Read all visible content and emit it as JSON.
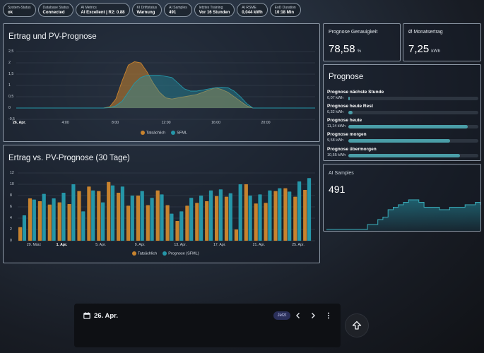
{
  "status_chips": [
    {
      "key": "System-Status",
      "value": "ok"
    },
    {
      "key": "Database Status",
      "value": "Connected"
    },
    {
      "key": "AI Metrics",
      "value": "AI Excellent | R2: 0.88"
    },
    {
      "key": "KI Driftstatus",
      "value": "Warnung"
    },
    {
      "key": "AI Samples",
      "value": "491"
    },
    {
      "key": "letztes Training",
      "value": "Vor 16 Stunden"
    },
    {
      "key": "AI RSME",
      "value": "0,044 kWh"
    },
    {
      "key": "EoD Duration",
      "value": "10:18 Min"
    }
  ],
  "forecast_card": {
    "title": "Ertrag und PV-Prognose",
    "yticks": [
      "2,5",
      "2",
      "1,5",
      "1",
      "0,5",
      "0",
      "-0,5"
    ],
    "xticks": [
      "26. Apr.",
      "4:00",
      "8:00",
      "12:00",
      "16:00",
      "20:00"
    ],
    "legend": [
      "Tatsächlich",
      "SFML"
    ]
  },
  "monthly_card": {
    "title": "Ertrag vs. PV-Prognose (30 Tage)",
    "yticks": [
      "12",
      "10",
      "8",
      "6",
      "4",
      "2",
      "0"
    ],
    "xticks": [
      "29. März",
      "1. Apr.",
      "5. Apr.",
      "9. Apr.",
      "13. Apr.",
      "17. Apr.",
      "21. Apr.",
      "25. Apr."
    ],
    "legend": [
      "Tatsächlich",
      "Prognose (SFML)"
    ]
  },
  "accuracy_card": {
    "title": "Prognose Genauigkeit",
    "value": "78,58",
    "unit": "%"
  },
  "monthly_avg_card": {
    "title": "Ø Monatsertrag",
    "value": "7,25",
    "unit": "kWh"
  },
  "prognose_card": {
    "title": "Prognose",
    "rows": [
      {
        "label": "Prognose nächste Stunde",
        "value": "0,07 kWh",
        "fraction": 0.004
      },
      {
        "label": "Prognose heute Rest",
        "value": "0,32 kWh",
        "fraction": 0.03
      },
      {
        "label": "Prognose heute",
        "value": "11,14 kWh",
        "fraction": 0.92
      },
      {
        "label": "Prognose morgen",
        "value": "9,58 kWh",
        "fraction": 0.78
      },
      {
        "label": "Prognose übermorgen",
        "value": "10,55 kWh",
        "fraction": 0.86
      }
    ]
  },
  "samples_card": {
    "title": "AI Samples",
    "value": "491"
  },
  "bottom_bar": {
    "date": "26. Apr.",
    "now_label": "Jetzt"
  },
  "colors": {
    "actual": "#c8832e",
    "forecast": "#2596a8"
  },
  "chart_data": [
    {
      "type": "area",
      "title": "Ertrag und PV-Prognose",
      "ylim": [
        -0.5,
        2.5
      ],
      "x_hours": [
        7,
        7.5,
        8,
        8.5,
        9,
        9.5,
        10,
        10.5,
        11,
        11.5,
        12,
        12.5,
        13,
        13.5,
        14,
        14.5,
        15,
        15.5,
        16,
        16.5,
        17,
        17.5,
        18,
        18.5,
        19
      ],
      "series": [
        {
          "name": "Tatsächlich",
          "values": [
            0,
            0.05,
            0.4,
            1.2,
            1.9,
            2.05,
            2.0,
            1.6,
            1.1,
            0.7,
            0.45,
            0.4,
            0.45,
            0.5,
            0.55,
            0.6,
            0.7,
            0.8,
            0.9,
            0.82,
            0.7,
            0.5,
            0.3,
            0.1,
            0
          ]
        },
        {
          "name": "SFML",
          "values": [
            0,
            0.02,
            0.1,
            0.3,
            0.7,
            1.1,
            1.35,
            1.45,
            1.45,
            1.45,
            1.4,
            1.35,
            1.1,
            0.85,
            0.75,
            0.75,
            0.8,
            0.85,
            0.9,
            0.92,
            0.9,
            0.75,
            0.5,
            0.2,
            0
          ]
        }
      ]
    },
    {
      "type": "bar",
      "title": "Ertrag vs. PV-Prognose (30 Tage)",
      "ylim": [
        0,
        12
      ],
      "categories": [
        "28.3",
        "29.3",
        "30.3",
        "31.3",
        "1.4",
        "2.4",
        "3.4",
        "4.4",
        "5.4",
        "6.4",
        "7.4",
        "8.4",
        "9.4",
        "10.4",
        "11.4",
        "12.4",
        "13.4",
        "14.4",
        "15.4",
        "16.4",
        "17.4",
        "18.4",
        "19.4",
        "20.4",
        "21.4",
        "22.4",
        "23.4",
        "24.4",
        "25.4",
        "26.4"
      ],
      "series": [
        {
          "name": "Tatsächlich",
          "values": [
            2.4,
            7.5,
            7.0,
            6.4,
            6.8,
            6.5,
            8.8,
            9.6,
            8.8,
            10.4,
            8.5,
            6.2,
            8.0,
            6.3,
            8.9,
            6.3,
            3.5,
            6.2,
            6.7,
            7.0,
            7.9,
            7.8,
            2.0,
            10.0,
            6.6,
            6.7,
            8.8,
            9.3,
            7.8,
            9.0
          ]
        },
        {
          "name": "Prognose (SFML)",
          "values": [
            4.5,
            7.3,
            8.3,
            7.5,
            8.5,
            10.0,
            5.2,
            8.9,
            6.8,
            9.8,
            9.6,
            8.0,
            8.8,
            7.6,
            8.2,
            4.8,
            5.2,
            7.6,
            8.0,
            8.9,
            9.1,
            8.4,
            10.0,
            8.0,
            8.2,
            8.9,
            9.3,
            8.7,
            10.5,
            11.1
          ]
        }
      ]
    },
    {
      "type": "area",
      "title": "AI Samples",
      "values": [
        0,
        0,
        0,
        0,
        0,
        0,
        0,
        0,
        0.1,
        0.1,
        0.2,
        0.25,
        0.4,
        0.45,
        0.5,
        0.55,
        0.6,
        0.6,
        0.55,
        0.45,
        0.45,
        0.45,
        0.4,
        0.4,
        0.45,
        0.45,
        0.45,
        0.5,
        0.5,
        0.55,
        0.5
      ]
    }
  ]
}
